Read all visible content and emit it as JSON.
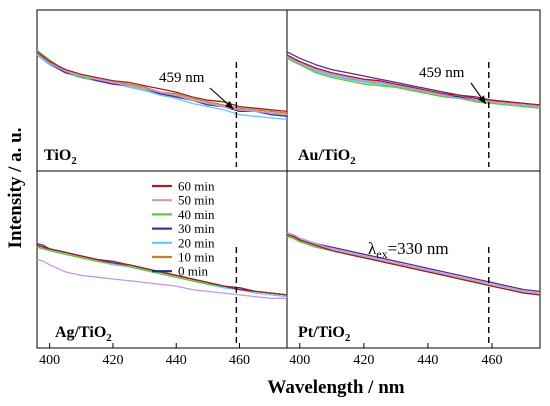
{
  "figure": {
    "ylabel": "Intensity / a. u.",
    "xlabel": "Wavelength / nm"
  },
  "chart_data": [
    {
      "type": "line",
      "panel": "top-left",
      "label_main": "TiO",
      "label_sub": "2",
      "label_rest": "",
      "annotation": "459 nm",
      "marker_x": 459,
      "xlim": [
        396,
        475
      ],
      "xticks": [],
      "ylim": [
        0,
        1
      ],
      "x": [
        396,
        398,
        400,
        405,
        410,
        415,
        420,
        425,
        430,
        435,
        440,
        445,
        450,
        455,
        460,
        465,
        470,
        475
      ],
      "series": [
        {
          "name": "60 min",
          "values": [
            0.74,
            0.71,
            0.68,
            0.63,
            0.6,
            0.58,
            0.56,
            0.55,
            0.53,
            0.51,
            0.49,
            0.46,
            0.44,
            0.43,
            0.4,
            0.39,
            0.38,
            0.37
          ]
        },
        {
          "name": "50 min",
          "values": [
            0.73,
            0.7,
            0.67,
            0.62,
            0.59,
            0.57,
            0.55,
            0.53,
            0.51,
            0.49,
            0.47,
            0.44,
            0.42,
            0.4,
            0.38,
            0.37,
            0.36,
            0.35
          ]
        },
        {
          "name": "40 min",
          "values": [
            0.75,
            0.72,
            0.69,
            0.62,
            0.58,
            0.57,
            0.55,
            0.53,
            0.51,
            0.49,
            0.47,
            0.44,
            0.42,
            0.4,
            0.38,
            0.37,
            0.36,
            0.35
          ]
        },
        {
          "name": "30 min",
          "values": [
            0.73,
            0.7,
            0.67,
            0.61,
            0.59,
            0.56,
            0.54,
            0.53,
            0.51,
            0.48,
            0.46,
            0.44,
            0.41,
            0.4,
            0.37,
            0.37,
            0.35,
            0.34
          ]
        },
        {
          "name": "20 min",
          "values": [
            0.72,
            0.69,
            0.66,
            0.61,
            0.58,
            0.56,
            0.55,
            0.52,
            0.5,
            0.47,
            0.45,
            0.42,
            0.4,
            0.38,
            0.35,
            0.34,
            0.33,
            0.32
          ]
        },
        {
          "name": "10 min",
          "values": [
            0.74,
            0.71,
            0.67,
            0.62,
            0.59,
            0.57,
            0.55,
            0.54,
            0.52,
            0.49,
            0.48,
            0.45,
            0.43,
            0.41,
            0.39,
            0.38,
            0.37,
            0.36
          ]
        },
        {
          "name": "0 min",
          "values": [
            0.73,
            0.7,
            0.66,
            0.61,
            0.58,
            0.56,
            0.54,
            0.53,
            0.51,
            0.48,
            0.46,
            0.44,
            0.42,
            0.4,
            0.38,
            0.37,
            0.36,
            0.35
          ]
        }
      ]
    },
    {
      "type": "line",
      "panel": "top-right",
      "label_main": "Au/TiO",
      "label_sub": "2",
      "label_rest": "",
      "annotation": "459 nm",
      "marker_x": 459,
      "xlim": [
        396,
        475
      ],
      "xticks": [],
      "ylim": [
        0,
        1
      ],
      "x": [
        396,
        398,
        400,
        405,
        410,
        415,
        420,
        425,
        430,
        435,
        440,
        445,
        450,
        455,
        460,
        465,
        470,
        475
      ],
      "series": [
        {
          "name": "60 min",
          "values": [
            0.72,
            0.7,
            0.68,
            0.64,
            0.61,
            0.59,
            0.57,
            0.56,
            0.54,
            0.52,
            0.5,
            0.48,
            0.47,
            0.45,
            0.44,
            0.43,
            0.42,
            0.41
          ]
        },
        {
          "name": "50 min",
          "values": [
            0.71,
            0.69,
            0.67,
            0.63,
            0.6,
            0.58,
            0.56,
            0.55,
            0.53,
            0.51,
            0.49,
            0.47,
            0.45,
            0.44,
            0.43,
            0.42,
            0.41,
            0.4
          ]
        },
        {
          "name": "40 min",
          "values": [
            0.7,
            0.68,
            0.66,
            0.61,
            0.58,
            0.56,
            0.54,
            0.53,
            0.52,
            0.5,
            0.48,
            0.46,
            0.45,
            0.43,
            0.42,
            0.41,
            0.4,
            0.39
          ]
        },
        {
          "name": "30 min",
          "values": [
            0.74,
            0.72,
            0.7,
            0.66,
            0.63,
            0.61,
            0.59,
            0.57,
            0.55,
            0.53,
            0.51,
            0.49,
            0.47,
            0.46,
            0.44,
            0.43,
            0.42,
            0.41
          ]
        },
        {
          "name": "20 min",
          "values": [
            0.7,
            0.68,
            0.66,
            0.62,
            0.59,
            0.57,
            0.55,
            0.54,
            0.52,
            0.5,
            0.48,
            0.46,
            0.45,
            0.43,
            0.42,
            0.41,
            0.4,
            0.39
          ]
        },
        {
          "name": "10 min",
          "values": [
            0.71,
            0.69,
            0.67,
            0.62,
            0.59,
            0.57,
            0.56,
            0.54,
            0.52,
            0.5,
            0.49,
            0.47,
            0.45,
            0.44,
            0.43,
            0.42,
            0.41,
            0.4
          ]
        },
        {
          "name": "0 min",
          "values": [
            0.72,
            0.7,
            0.67,
            0.63,
            0.6,
            0.58,
            0.56,
            0.55,
            0.53,
            0.51,
            0.49,
            0.47,
            0.46,
            0.44,
            0.43,
            0.42,
            0.41,
            0.4
          ]
        }
      ]
    },
    {
      "type": "line",
      "panel": "bottom-left",
      "label_main": "Ag/TiO",
      "label_sub": "2",
      "label_rest": "",
      "annotation": "",
      "marker_x": 459,
      "xlim": [
        396,
        475
      ],
      "xticks": [
        400,
        420,
        440,
        460
      ],
      "ylim": [
        0,
        1
      ],
      "x": [
        396,
        398,
        400,
        405,
        410,
        415,
        420,
        425,
        430,
        435,
        440,
        445,
        450,
        455,
        460,
        465,
        470,
        475
      ],
      "series": [
        {
          "name": "60 min",
          "values": [
            0.58,
            0.57,
            0.56,
            0.54,
            0.52,
            0.5,
            0.48,
            0.47,
            0.45,
            0.43,
            0.41,
            0.39,
            0.37,
            0.35,
            0.33,
            0.32,
            0.31,
            0.3
          ]
        },
        {
          "name": "50 min",
          "values": [
            0.5,
            0.49,
            0.47,
            0.43,
            0.41,
            0.4,
            0.39,
            0.38,
            0.37,
            0.36,
            0.35,
            0.33,
            0.32,
            0.31,
            0.3,
            0.29,
            0.28,
            0.28
          ]
        },
        {
          "name": "40 min",
          "values": [
            0.57,
            0.56,
            0.55,
            0.53,
            0.51,
            0.49,
            0.48,
            0.46,
            0.44,
            0.42,
            0.4,
            0.38,
            0.36,
            0.35,
            0.33,
            0.32,
            0.31,
            0.3
          ]
        },
        {
          "name": "30 min",
          "values": [
            0.59,
            0.58,
            0.56,
            0.54,
            0.52,
            0.5,
            0.49,
            0.47,
            0.45,
            0.43,
            0.41,
            0.39,
            0.37,
            0.35,
            0.34,
            0.32,
            0.31,
            0.3
          ]
        },
        {
          "name": "20 min",
          "values": [
            0.57,
            0.56,
            0.55,
            0.53,
            0.51,
            0.49,
            0.47,
            0.46,
            0.44,
            0.42,
            0.4,
            0.38,
            0.36,
            0.34,
            0.33,
            0.31,
            0.3,
            0.29
          ]
        },
        {
          "name": "10 min",
          "values": [
            0.58,
            0.57,
            0.55,
            0.53,
            0.51,
            0.49,
            0.48,
            0.46,
            0.44,
            0.42,
            0.4,
            0.38,
            0.36,
            0.35,
            0.33,
            0.32,
            0.31,
            0.3
          ]
        },
        {
          "name": "0 min",
          "values": [
            0.58,
            0.57,
            0.56,
            0.54,
            0.52,
            0.5,
            0.48,
            0.47,
            0.45,
            0.43,
            0.41,
            0.39,
            0.37,
            0.35,
            0.34,
            0.32,
            0.31,
            0.3
          ]
        }
      ]
    },
    {
      "type": "line",
      "panel": "bottom-right",
      "label_main": "Pt/TiO",
      "label_sub": "2",
      "label_rest": "",
      "annotation": "λex=330 nm",
      "marker_x": 459,
      "xlim": [
        396,
        475
      ],
      "xticks": [
        400,
        420,
        440,
        460
      ],
      "ylim": [
        0,
        1
      ],
      "x": [
        396,
        398,
        400,
        405,
        410,
        415,
        420,
        425,
        430,
        435,
        440,
        445,
        450,
        455,
        460,
        465,
        470,
        475
      ],
      "series": [
        {
          "name": "60 min",
          "values": [
            0.64,
            0.63,
            0.61,
            0.58,
            0.55,
            0.53,
            0.51,
            0.49,
            0.47,
            0.45,
            0.43,
            0.41,
            0.39,
            0.37,
            0.35,
            0.33,
            0.31,
            0.3
          ]
        },
        {
          "name": "50 min",
          "values": [
            0.65,
            0.64,
            0.62,
            0.59,
            0.56,
            0.54,
            0.52,
            0.5,
            0.48,
            0.46,
            0.44,
            0.42,
            0.4,
            0.38,
            0.36,
            0.34,
            0.32,
            0.31
          ]
        },
        {
          "name": "40 min",
          "values": [
            0.63,
            0.62,
            0.6,
            0.57,
            0.55,
            0.53,
            0.51,
            0.49,
            0.47,
            0.45,
            0.43,
            0.41,
            0.39,
            0.37,
            0.35,
            0.33,
            0.31,
            0.3
          ]
        },
        {
          "name": "30 min",
          "values": [
            0.65,
            0.64,
            0.62,
            0.59,
            0.57,
            0.55,
            0.53,
            0.51,
            0.49,
            0.47,
            0.45,
            0.43,
            0.41,
            0.39,
            0.37,
            0.35,
            0.33,
            0.32
          ]
        },
        {
          "name": "20 min",
          "values": [
            0.64,
            0.63,
            0.61,
            0.58,
            0.56,
            0.54,
            0.52,
            0.5,
            0.48,
            0.46,
            0.44,
            0.42,
            0.4,
            0.38,
            0.36,
            0.34,
            0.32,
            0.31
          ]
        },
        {
          "name": "10 min",
          "values": [
            0.63,
            0.62,
            0.6,
            0.57,
            0.55,
            0.53,
            0.51,
            0.49,
            0.47,
            0.45,
            0.43,
            0.41,
            0.39,
            0.37,
            0.35,
            0.33,
            0.31,
            0.3
          ]
        },
        {
          "name": "0 min",
          "values": [
            0.64,
            0.63,
            0.61,
            0.58,
            0.56,
            0.54,
            0.52,
            0.5,
            0.48,
            0.46,
            0.44,
            0.42,
            0.4,
            0.38,
            0.36,
            0.34,
            0.32,
            0.31
          ]
        }
      ]
    }
  ],
  "legend": {
    "placement": "bottom-left panel, top-left",
    "items": [
      {
        "label": "60 min",
        "color": "#a31f1f"
      },
      {
        "label": "50 min",
        "color": "#c896e0"
      },
      {
        "label": "40 min",
        "color": "#5cc83c"
      },
      {
        "label": "30 min",
        "color": "#5a2b8c"
      },
      {
        "label": "20 min",
        "color": "#5ecbf0"
      },
      {
        "label": "10 min",
        "color": "#b8862a"
      },
      {
        "label": "0 min",
        "color": "#1c2f86"
      }
    ]
  }
}
